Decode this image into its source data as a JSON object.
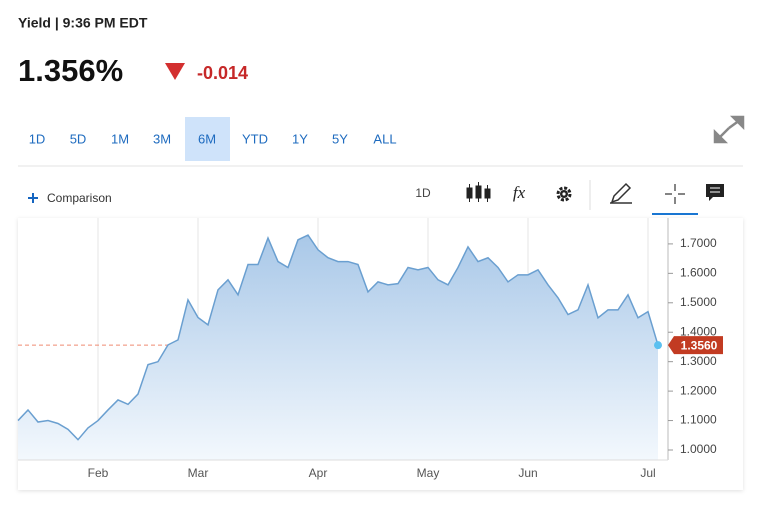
{
  "status": "Yield | 9:36 PM EDT",
  "price": "1.356%",
  "change": "-0.014",
  "ranges": [
    "1D",
    "5D",
    "1M",
    "3M",
    "6M",
    "YTD",
    "1Y",
    "5Y",
    "ALL"
  ],
  "selected_range": 4,
  "toolbar": {
    "comparison": "Comparison",
    "interval": "1D",
    "studies": "fx"
  },
  "chart_data": {
    "type": "line",
    "categories": [
      null,
      null,
      null,
      null,
      null,
      null,
      null,
      null,
      "Feb",
      null,
      null,
      null,
      null,
      null,
      null,
      null,
      null,
      null,
      "Mar",
      null,
      null,
      null,
      null,
      null,
      null,
      null,
      null,
      null,
      null,
      null,
      "Apr",
      null,
      null,
      null,
      null,
      null,
      null,
      null,
      null,
      null,
      null,
      "May",
      null,
      null,
      null,
      null,
      null,
      null,
      null,
      null,
      null,
      "Jun",
      null,
      null,
      null,
      null,
      null,
      null,
      null,
      null,
      null,
      null,
      null,
      "Jul",
      null
    ],
    "series": [
      {
        "name": "Yield",
        "color": "#6a9fd0",
        "values": [
          1.1,
          1.136,
          1.095,
          1.1,
          1.09,
          1.07,
          1.035,
          1.075,
          1.1,
          1.136,
          1.17,
          1.155,
          1.19,
          1.29,
          1.3,
          1.357,
          1.374,
          1.51,
          1.45,
          1.425,
          1.544,
          1.578,
          1.527,
          1.63,
          1.63,
          1.72,
          1.64,
          1.62,
          1.714,
          1.73,
          1.68,
          1.653,
          1.64,
          1.64,
          1.63,
          1.537,
          1.571,
          1.561,
          1.565,
          1.62,
          1.612,
          1.62,
          1.578,
          1.561,
          1.62,
          1.69,
          1.64,
          1.653,
          1.62,
          1.571,
          1.595,
          1.595,
          1.612,
          1.561,
          1.517,
          1.46,
          1.476,
          1.561,
          1.449,
          1.476,
          1.476,
          1.527,
          1.449,
          1.47,
          1.356
        ]
      }
    ],
    "ylim": [
      0.966,
      1.788
    ],
    "yticks": [
      {
        "value": 1.0,
        "label": "1.0000"
      },
      {
        "value": 1.1,
        "label": "1.1000"
      },
      {
        "value": 1.2,
        "label": "1.2000"
      },
      {
        "value": 1.3,
        "label": "1.3000"
      },
      {
        "value": 1.4,
        "label": "1.4000"
      },
      {
        "value": 1.5,
        "label": "1.5000"
      },
      {
        "value": 1.6,
        "label": "1.6000"
      },
      {
        "value": 1.7,
        "label": "1.7000"
      }
    ],
    "reference": {
      "value": 1.356,
      "label": "1.3560",
      "color": "#c23b22"
    },
    "xgrid": true
  }
}
